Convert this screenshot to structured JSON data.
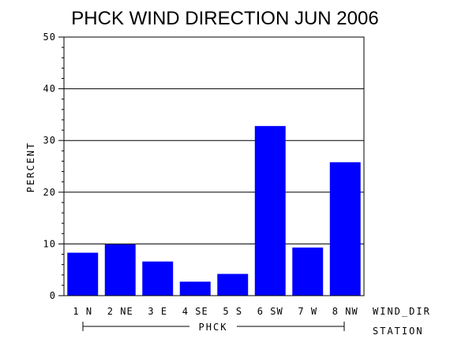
{
  "chart_data": {
    "type": "bar",
    "title": "PHCK WIND DIRECTION JUN 2006",
    "ylabel": "PERCENT",
    "xlabel": "WIND_DIR",
    "group_axis_label": "STATION",
    "group_label": "PHCK",
    "ylim": [
      0,
      50
    ],
    "yticks": [
      0,
      10,
      20,
      30,
      40,
      50
    ],
    "grid": true,
    "bar_color": "#0000ff",
    "categories": [
      "1 N",
      "2 NE",
      "3 E",
      "4 SE",
      "5 S",
      "6 SW",
      "7 W",
      "8 NW"
    ],
    "values": [
      8.3,
      9.9,
      6.6,
      2.7,
      4.2,
      32.8,
      9.3,
      25.8
    ]
  }
}
